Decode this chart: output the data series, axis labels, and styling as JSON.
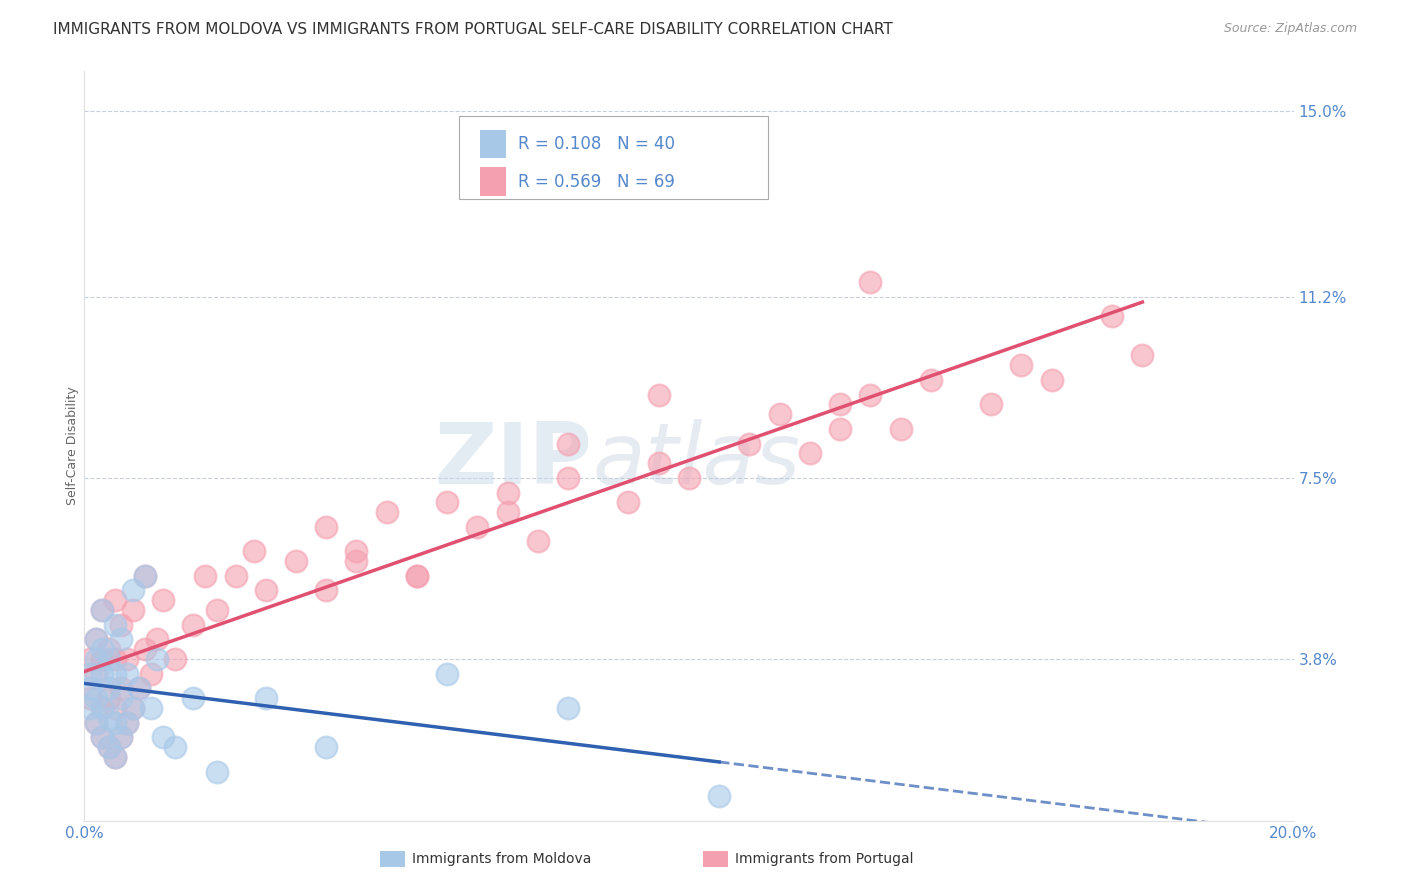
{
  "title": "IMMIGRANTS FROM MOLDOVA VS IMMIGRANTS FROM PORTUGAL SELF-CARE DISABILITY CORRELATION CHART",
  "source": "Source: ZipAtlas.com",
  "ylabel": "Self-Care Disability",
  "xlim": [
    0.0,
    0.2
  ],
  "ylim": [
    0.005,
    0.158
  ],
  "ytick_vals": [
    0.038,
    0.075,
    0.112,
    0.15
  ],
  "ytick_labels": [
    "3.8%",
    "7.5%",
    "11.2%",
    "15.0%"
  ],
  "moldova_color": "#a8c8e8",
  "portugal_color": "#f4a0b0",
  "moldova_line_color": "#3060b0",
  "portugal_line_color": "#e05070",
  "moldova_R": 0.108,
  "moldova_N": 40,
  "portugal_R": 0.569,
  "portugal_N": 69,
  "moldova_scatter_x": [
    0.001,
    0.001,
    0.001,
    0.002,
    0.002,
    0.002,
    0.002,
    0.003,
    0.003,
    0.003,
    0.003,
    0.003,
    0.004,
    0.004,
    0.004,
    0.004,
    0.005,
    0.005,
    0.005,
    0.005,
    0.006,
    0.006,
    0.006,
    0.007,
    0.007,
    0.008,
    0.008,
    0.009,
    0.01,
    0.011,
    0.012,
    0.013,
    0.015,
    0.018,
    0.022,
    0.03,
    0.04,
    0.06,
    0.08,
    0.105
  ],
  "moldova_scatter_y": [
    0.028,
    0.032,
    0.035,
    0.025,
    0.03,
    0.038,
    0.042,
    0.022,
    0.028,
    0.035,
    0.04,
    0.048,
    0.02,
    0.026,
    0.032,
    0.038,
    0.018,
    0.025,
    0.035,
    0.045,
    0.022,
    0.03,
    0.042,
    0.025,
    0.035,
    0.028,
    0.052,
    0.032,
    0.055,
    0.028,
    0.038,
    0.022,
    0.02,
    0.03,
    0.015,
    0.03,
    0.02,
    0.035,
    0.028,
    0.01
  ],
  "portugal_scatter_x": [
    0.001,
    0.001,
    0.002,
    0.002,
    0.002,
    0.003,
    0.003,
    0.003,
    0.003,
    0.004,
    0.004,
    0.004,
    0.005,
    0.005,
    0.005,
    0.005,
    0.006,
    0.006,
    0.006,
    0.007,
    0.007,
    0.008,
    0.008,
    0.009,
    0.01,
    0.01,
    0.011,
    0.012,
    0.013,
    0.015,
    0.018,
    0.02,
    0.022,
    0.025,
    0.028,
    0.03,
    0.035,
    0.04,
    0.045,
    0.05,
    0.055,
    0.06,
    0.065,
    0.07,
    0.075,
    0.08,
    0.09,
    0.095,
    0.1,
    0.11,
    0.115,
    0.12,
    0.125,
    0.13,
    0.135,
    0.14,
    0.15,
    0.155,
    0.16,
    0.17,
    0.175,
    0.13,
    0.055,
    0.08,
    0.095,
    0.045,
    0.04,
    0.07,
    0.125
  ],
  "portugal_scatter_y": [
    0.03,
    0.038,
    0.025,
    0.035,
    0.042,
    0.022,
    0.028,
    0.038,
    0.048,
    0.02,
    0.03,
    0.04,
    0.018,
    0.028,
    0.038,
    0.05,
    0.022,
    0.032,
    0.045,
    0.025,
    0.038,
    0.028,
    0.048,
    0.032,
    0.04,
    0.055,
    0.035,
    0.042,
    0.05,
    0.038,
    0.045,
    0.055,
    0.048,
    0.055,
    0.06,
    0.052,
    0.058,
    0.065,
    0.06,
    0.068,
    0.055,
    0.07,
    0.065,
    0.072,
    0.062,
    0.075,
    0.07,
    0.078,
    0.075,
    0.082,
    0.088,
    0.08,
    0.085,
    0.092,
    0.085,
    0.095,
    0.09,
    0.098,
    0.095,
    0.108,
    0.1,
    0.115,
    0.055,
    0.082,
    0.092,
    0.058,
    0.052,
    0.068,
    0.09
  ],
  "watermark_zip": "ZIP",
  "watermark_atlas": "atlas",
  "background_color": "#ffffff",
  "grid_color": "#c8d0dc",
  "title_fontsize": 11,
  "axis_label_fontsize": 9,
  "tick_fontsize": 11,
  "tick_color": "#5588cc",
  "legend_fontsize": 12
}
